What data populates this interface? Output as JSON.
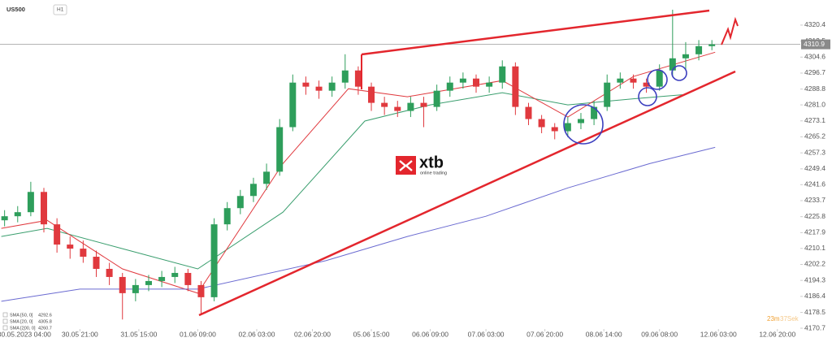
{
  "chart_data": {
    "type": "candlestick",
    "symbol": "US500",
    "interval": "H1",
    "x": [
      -6,
      -2,
      2,
      6,
      10,
      14,
      18,
      22,
      26,
      30,
      34,
      38,
      42,
      46,
      50,
      54,
      58,
      62,
      66,
      70,
      74,
      78,
      82,
      86,
      90,
      94,
      98,
      102,
      106,
      110,
      114,
      118,
      122,
      126,
      130,
      134,
      138,
      142,
      146,
      150,
      154,
      158,
      162,
      166,
      170,
      174,
      178,
      182,
      186,
      190,
      194,
      198,
      202,
      206,
      210
    ],
    "open": [
      4224,
      4226,
      4228,
      4238,
      4222,
      4212,
      4210,
      4206,
      4200,
      4196,
      4188,
      4192,
      4194,
      4196,
      4198,
      4192,
      4186,
      4222,
      4230,
      4236,
      4242,
      4248,
      4270,
      4292,
      4290,
      4288,
      4292,
      4298,
      4290,
      4282,
      4280,
      4278,
      4282,
      4280,
      4288,
      4292,
      4294,
      4290,
      4292,
      4300,
      4280,
      4274,
      4270,
      4268,
      4272,
      4274,
      4280,
      4292,
      4294,
      4292,
      4290,
      4298,
      4304,
      4306,
      4310
    ],
    "high": [
      4229,
      4231,
      4243,
      4240,
      4225,
      4216,
      4214,
      4209,
      4203,
      4198,
      4195,
      4197,
      4199,
      4201,
      4200,
      4194,
      4225,
      4233,
      4239,
      4245,
      4252,
      4274,
      4296,
      4295,
      4293,
      4295,
      4306,
      4300,
      4292,
      4285,
      4283,
      4285,
      4285,
      4291,
      4295,
      4297,
      4296,
      4295,
      4303,
      4302,
      4282,
      4276,
      4272,
      4275,
      4277,
      4283,
      4296,
      4297,
      4296,
      4294,
      4301,
      4328,
      4312,
      4313,
      4313
    ],
    "low": [
      4221,
      4223,
      4226,
      4218,
      4208,
      4205,
      4203,
      4196,
      4192,
      4175,
      4184,
      4189,
      4191,
      4193,
      4189,
      4178,
      4184,
      4219,
      4227,
      4233,
      4239,
      4246,
      4268,
      4286,
      4284,
      4285,
      4289,
      4286,
      4278,
      4276,
      4275,
      4275,
      4270,
      4278,
      4285,
      4289,
      4287,
      4287,
      4289,
      4276,
      4271,
      4267,
      4264,
      4265,
      4269,
      4271,
      4278,
      4289,
      4289,
      4287,
      4288,
      4295,
      4298,
      4303,
      4308
    ],
    "close": [
      4226,
      4228,
      4238,
      4222,
      4212,
      4210,
      4206,
      4200,
      4196,
      4188,
      4192,
      4194,
      4196,
      4198,
      4192,
      4186,
      4222,
      4230,
      4236,
      4242,
      4248,
      4270,
      4292,
      4290,
      4288,
      4292,
      4298,
      4290,
      4282,
      4280,
      4278,
      4282,
      4280,
      4288,
      4292,
      4294,
      4290,
      4292,
      4300,
      4280,
      4274,
      4270,
      4268,
      4272,
      4274,
      4280,
      4292,
      4294,
      4292,
      4290,
      4298,
      4304,
      4306,
      4310,
      4310.9
    ],
    "up_color": "#2e9e5b",
    "down_color": "#e0393e",
    "last_price": 4310.9,
    "lines": [
      {
        "name": "SMA [50, 0]",
        "last": 4292.6,
        "color": "#3a9e6e",
        "x": [
          -7,
          7,
          30,
          53,
          79,
          104,
          124,
          146,
          166,
          186,
          201
        ],
        "values": [
          4216,
          4220,
          4210,
          4200,
          4228,
          4273,
          4281,
          4287,
          4281,
          4284,
          4286
        ]
      },
      {
        "name": "SMA [20, 0]",
        "last": 4305.8,
        "color": "#e0393e",
        "x": [
          -7,
          7,
          30,
          53,
          79,
          99,
          117,
          146,
          166,
          186,
          211
        ],
        "values": [
          4220,
          4224,
          4200,
          4188,
          4252,
          4289,
          4285,
          4293,
          4275,
          4295,
          4307
        ]
      },
      {
        "name": "SMA [200, 0]",
        "last": 4260.7,
        "color": "#6b6bd1",
        "x": [
          -7,
          17,
          53,
          92,
          117,
          141,
          166,
          191,
          211
        ],
        "values": [
          4184,
          4190,
          4190,
          4204,
          4216,
          4226,
          4240,
          4252,
          4260
        ]
      }
    ],
    "xlim": [
      -7.4,
      237
    ],
    "xticks": [
      {
        "value": 0,
        "label": "30.05.2023 04:00"
      },
      {
        "value": 17,
        "label": "30.05 21:00"
      },
      {
        "value": 35,
        "label": "31.05 15:00"
      },
      {
        "value": 53,
        "label": "01.06 09:00"
      },
      {
        "value": 71,
        "label": "02.06 03:00"
      },
      {
        "value": 88,
        "label": "02.06 20:00"
      },
      {
        "value": 106,
        "label": "05.06 15:00"
      },
      {
        "value": 124,
        "label": "06.06 09:00"
      },
      {
        "value": 141,
        "label": "07.06 03:00"
      },
      {
        "value": 159,
        "label": "07.06 20:00"
      },
      {
        "value": 177,
        "label": "08.06 14:00"
      },
      {
        "value": 194,
        "label": "09.06 08:00"
      },
      {
        "value": 212,
        "label": "12.06 03:00"
      },
      {
        "value": 230,
        "label": "12.06 20:00"
      }
    ],
    "ylim": [
      4170.3,
      4332.8
    ],
    "yticks": [
      4320.4,
      4312.5,
      4304.6,
      4296.7,
      4288.8,
      {
        "value": 4281,
        "label": "4281.0"
      },
      4273.1,
      4265.2,
      4257.3,
      4249.4,
      4241.6,
      4233.7,
      4225.8,
      4217.9,
      4210.1,
      4202.2,
      4194.3,
      4186.4,
      4178.5,
      4170.7
    ],
    "logo": "xtb",
    "logo_tagline": "online trading",
    "timer": [
      "23m",
      "37Sek"
    ]
  }
}
